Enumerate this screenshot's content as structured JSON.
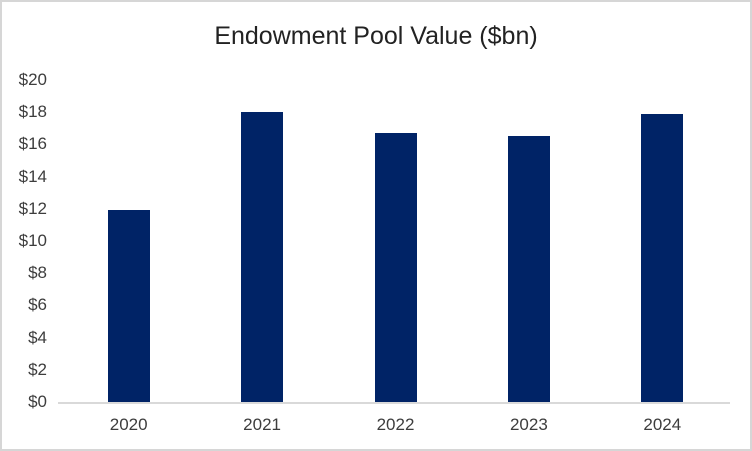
{
  "chart": {
    "title": "Endowment Pool Value ($bn)"
  },
  "chart_data": {
    "type": "bar",
    "title": "Endowment Pool Value ($bn)",
    "xlabel": "",
    "ylabel": "",
    "categories": [
      "2020",
      "2021",
      "2022",
      "2023",
      "2024"
    ],
    "values": [
      11.9,
      18.0,
      16.7,
      16.5,
      17.9
    ],
    "ylim": [
      0,
      20
    ],
    "y_ticks": [
      {
        "label": "$0",
        "value": 0
      },
      {
        "label": "$2",
        "value": 2
      },
      {
        "label": "$4",
        "value": 4
      },
      {
        "label": "$6",
        "value": 6
      },
      {
        "label": "$8",
        "value": 8
      },
      {
        "label": "$10",
        "value": 10
      },
      {
        "label": "$12",
        "value": 12
      },
      {
        "label": "$14",
        "value": 14
      },
      {
        "label": "$16",
        "value": 16
      },
      {
        "label": "$18",
        "value": 18
      },
      {
        "label": "$20",
        "value": 20
      }
    ],
    "grid": false,
    "legend": false,
    "colors": {
      "bar": "#002366",
      "axis_line": "#d9d9d9",
      "title_text": "#222222",
      "tick_text": "#3d3d3d",
      "frame_border": "#d6d6d6"
    }
  }
}
